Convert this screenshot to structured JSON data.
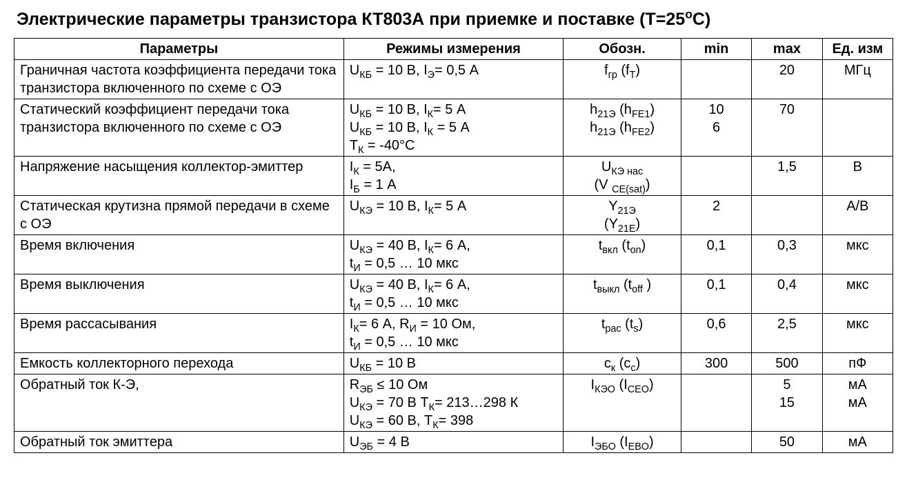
{
  "title_html": "Электрические параметры транзистора КТ803А при приемке и поставке (Т=25<sup>о</sup>С)",
  "headers": {
    "param": "Параметры",
    "cond": "Режимы измерения",
    "sym": "Обозн.",
    "min": "min",
    "max": "max",
    "unit": "Ед. изм"
  },
  "rows": [
    {
      "param": "Граничная частота коэффициента передачи тока транзистора включенного по схеме с ОЭ",
      "cond": [
        "U<sub>КБ</sub> = 10 В, I<sub>Э</sub>= 0,5 А"
      ],
      "sym": [
        "f<sub>гр</sub> (f<sub>T</sub>)"
      ],
      "min": [
        ""
      ],
      "max": [
        "20"
      ],
      "unit": [
        "МГц"
      ]
    },
    {
      "param": "Статический коэффициент передачи тока транзистора включенного по схеме с ОЭ",
      "cond": [
        "U<sub>КБ</sub> = 10 В, I<sub>К</sub>= 5 А",
        "U<sub>КБ</sub> = 10 В, I<sub>К</sub> = 5 А",
        "Т<sub>К</sub> = -40°С"
      ],
      "sym": [
        "h<sub>21Э</sub> (h<sub>FE1</sub>)",
        "h<sub>21Э</sub> (h<sub>FE2</sub>)"
      ],
      "min": [
        "10",
        "6"
      ],
      "max": [
        "70"
      ],
      "unit": [
        ""
      ]
    },
    {
      "param": "Напряжение насыщения коллектор-эмиттер",
      "cond": [
        "I<sub>К</sub> = 5А,",
        "I<sub>Б</sub> = 1 А"
      ],
      "sym": [
        "U<sub>КЭ нас</sub>",
        "(V <sub>CE(sat)</sub>)"
      ],
      "min": [
        ""
      ],
      "max": [
        "1,5"
      ],
      "unit": [
        "В"
      ]
    },
    {
      "param": "Статическая крутизна прямой передачи в схеме с ОЭ",
      "cond": [
        "U<sub>КЭ</sub> = 10 В, I<sub>К</sub>= 5 А"
      ],
      "sym": [
        "Y<sub>21Э</sub>",
        "(Y<sub>21E</sub>)"
      ],
      "min": [
        "2"
      ],
      "max": [
        ""
      ],
      "unit": [
        "А/В"
      ]
    },
    {
      "param": "Время включения",
      "cond": [
        "U<sub>КЭ</sub> = 40 В, I<sub>К</sub>= 6 А,",
        "t<sub>И</sub> = 0,5 … 10 мкс"
      ],
      "sym": [
        "t<sub>вкл</sub> (t<sub>on</sub>)"
      ],
      "min": [
        "0,1"
      ],
      "max": [
        "0,3"
      ],
      "unit": [
        "мкс"
      ]
    },
    {
      "param": "Время выключения",
      "cond": [
        "U<sub>КЭ</sub> = 40 В, I<sub>К</sub>= 6 А,",
        "t<sub>И</sub> = 0,5 … 10 мкс"
      ],
      "sym": [
        "t<sub>выкл</sub> (t<sub>off</sub> )"
      ],
      "min": [
        "0,1"
      ],
      "max": [
        "0,4"
      ],
      "unit": [
        "мкс"
      ]
    },
    {
      "param": "Время рассасывания",
      "cond": [
        "I<sub>К</sub>= 6 А, R<sub>И</sub> = 10 Ом,",
        "t<sub>И</sub> = 0,5 … 10 мкс"
      ],
      "sym": [
        "t<sub>рас</sub> (t<sub>s</sub>)"
      ],
      "min": [
        "0,6"
      ],
      "max": [
        "2,5"
      ],
      "unit": [
        "мкс"
      ]
    },
    {
      "param": "Емкость коллекторного перехода",
      "cond": [
        "U<sub>КБ</sub> = 10 В"
      ],
      "sym": [
        "c<sub>к</sub> (c<sub>c</sub>)"
      ],
      "min": [
        "300"
      ],
      "max": [
        "500"
      ],
      "unit": [
        "пФ"
      ]
    },
    {
      "param": "Обратный ток К-Э,",
      "cond": [
        "R<sub>ЭБ</sub> ≤ 10 Ом",
        "U<sub>КЭ</sub> = 70 В Т<sub>К</sub>= 213…298 К",
        "U<sub>КЭ</sub> = 60 В, Т<sub>К</sub>= 398"
      ],
      "sym": [
        "I<sub>КЭО</sub> (I<sub>CEO</sub>)"
      ],
      "min": [
        ""
      ],
      "max": [
        "",
        "5",
        "15"
      ],
      "unit": [
        "",
        "мА",
        "мА"
      ]
    },
    {
      "param": "Обратный ток эмиттера",
      "cond": [
        "U<sub>ЭБ</sub> = 4 В"
      ],
      "sym": [
        "I<sub>ЭБО</sub> (I<sub>EBO</sub>)"
      ],
      "min": [
        ""
      ],
      "max": [
        "50"
      ],
      "unit": [
        "мА"
      ]
    }
  ]
}
